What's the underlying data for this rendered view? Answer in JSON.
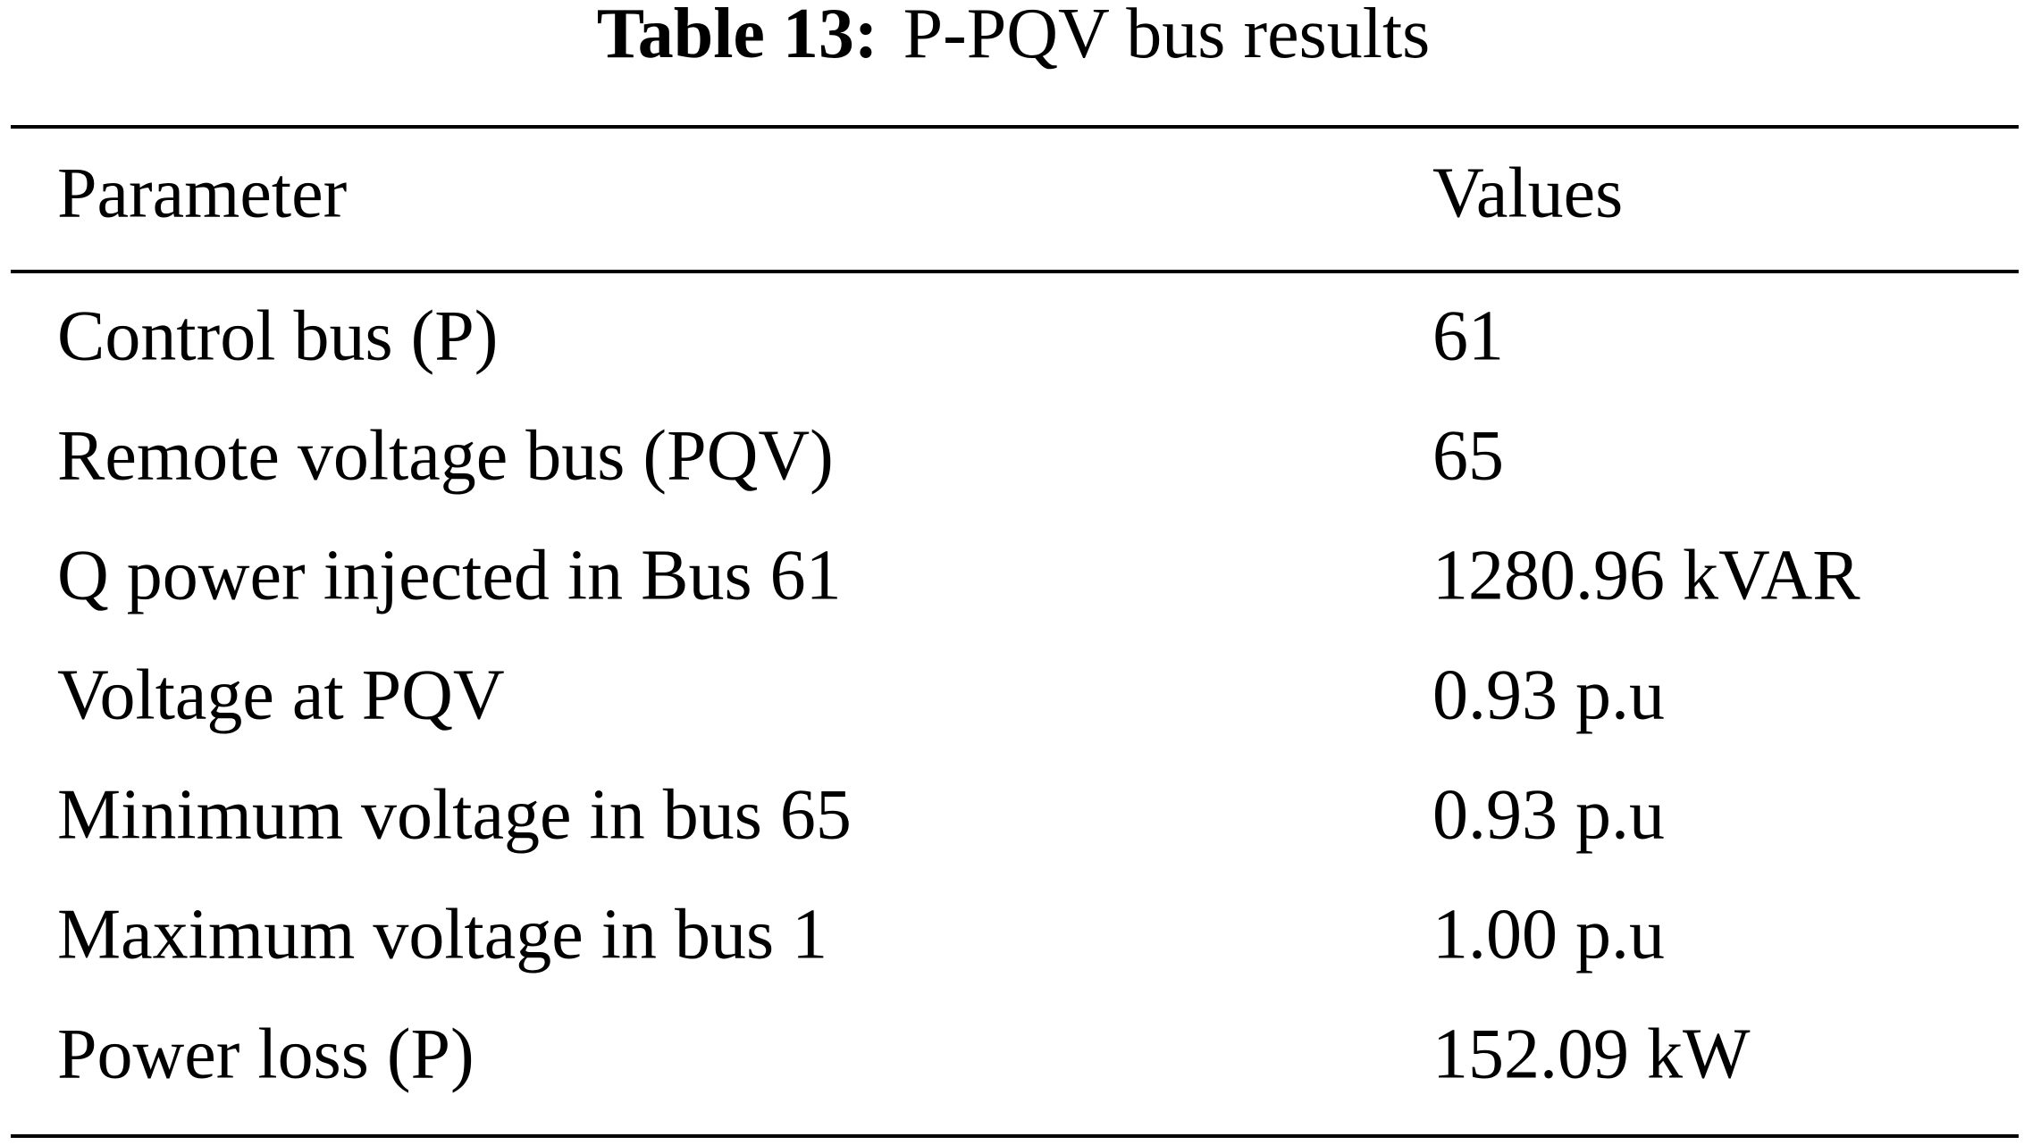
{
  "caption": {
    "label": "Table 13:",
    "text": "P-PQV bus results"
  },
  "table": {
    "header": [
      "Parameter",
      "Values"
    ],
    "rows": [
      [
        "Control bus (P)",
        "61"
      ],
      [
        "Remote voltage bus (PQV)",
        "65"
      ],
      [
        "Q power injected in Bus 61",
        "1280.96 kVAR"
      ],
      [
        "Voltage at PQV",
        "0.93 p.u"
      ],
      [
        "Minimum voltage in bus 65",
        "0.93 p.u"
      ],
      [
        "Maximum voltage in bus 1",
        "1.00 p.u"
      ],
      [
        "Power loss (P)",
        "152.09 kW"
      ]
    ]
  }
}
